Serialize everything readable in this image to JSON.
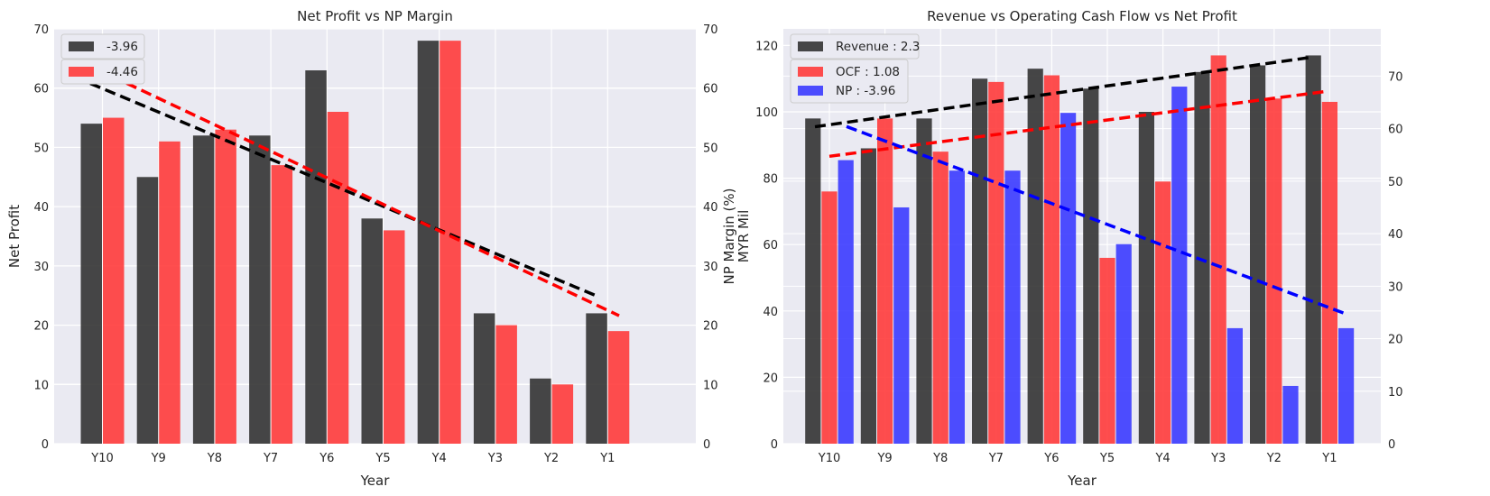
{
  "chart_data": [
    {
      "type": "bar",
      "title": "Net Profit vs NP Margin",
      "xlabel": "Year",
      "ylabel": "Net Profit",
      "y2label": "NP Margin (%)",
      "categories": [
        "Y10",
        "Y9",
        "Y8",
        "Y7",
        "Y6",
        "Y5",
        "Y4",
        "Y3",
        "Y2",
        "Y1"
      ],
      "ylim": [
        0,
        70
      ],
      "y2lim": [
        0,
        70
      ],
      "yticks": [
        0,
        10,
        20,
        30,
        40,
        50,
        60,
        70
      ],
      "y2ticks": [
        0,
        10,
        20,
        30,
        40,
        50,
        60,
        70
      ],
      "grid": true,
      "legend_position": "upper-left",
      "series": [
        {
          "name": "-3.96",
          "color": "#333333",
          "axis": "left",
          "values": [
            54,
            45,
            52,
            52,
            63,
            38,
            68,
            22,
            11,
            22
          ]
        },
        {
          "name": "-4.46",
          "color": "#ff3b3b",
          "axis": "right",
          "values": [
            55,
            51,
            53,
            47,
            56,
            36,
            68,
            20,
            10,
            19
          ]
        }
      ],
      "trendlines": [
        {
          "color": "#000000",
          "axis": "left",
          "start": 60.8,
          "end": 25.0
        },
        {
          "color": "#ff0000",
          "axis": "right",
          "start": 62.0,
          "end": 21.6
        }
      ]
    },
    {
      "type": "bar",
      "title": "Revenue vs Operating Cash Flow vs Net Profit",
      "xlabel": "Year",
      "ylabel": "MYR Mil",
      "categories": [
        "Y10",
        "Y9",
        "Y8",
        "Y7",
        "Y6",
        "Y5",
        "Y4",
        "Y3",
        "Y2",
        "Y1"
      ],
      "ylim": [
        0,
        125
      ],
      "y2lim": [
        0,
        79
      ],
      "yticks": [
        0,
        20,
        40,
        60,
        80,
        100,
        120
      ],
      "y2ticks": [
        0,
        10,
        20,
        30,
        40,
        50,
        60,
        70
      ],
      "grid": true,
      "legend_position": "upper-left",
      "series": [
        {
          "name": "Revenue : 2.3",
          "color": "#333333",
          "axis": "left",
          "values": [
            98,
            89,
            98,
            110,
            113,
            107,
            100,
            112,
            114,
            117
          ]
        },
        {
          "name": "OCF : 1.08",
          "color": "#ff3b3b",
          "axis": "left",
          "values": [
            76,
            98,
            88,
            109,
            111,
            56,
            79,
            117,
            104,
            103
          ]
        },
        {
          "name": "NP : -3.96",
          "color": "#3b3bff",
          "axis": "right",
          "values": [
            54,
            45,
            52,
            52,
            63,
            38,
            68,
            22,
            11,
            22
          ]
        }
      ],
      "trendlines": [
        {
          "color": "#000000",
          "axis": "left",
          "start": 95.5,
          "end": 116.5
        },
        {
          "color": "#ff0000",
          "axis": "left",
          "start": 86.6,
          "end": 106.2
        },
        {
          "color": "#0000ff",
          "axis": "right",
          "start": 60.4,
          "end": 24.8
        }
      ]
    }
  ]
}
